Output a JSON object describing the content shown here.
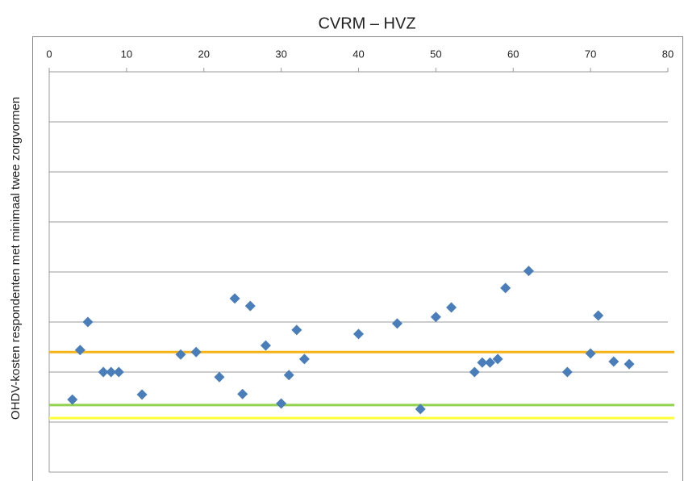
{
  "chart_data": {
    "type": "scatter",
    "title": "CVRM – HVZ",
    "y_label": "OHDV-kosten respondenten met minimaal twee zorgvormen",
    "series": [
      {
        "color": "#4a7ebb",
        "x": [
          3,
          4,
          5,
          7,
          8,
          9,
          12,
          17,
          19,
          22,
          24,
          25,
          26,
          28,
          30,
          31,
          32,
          33,
          40,
          45,
          48,
          50,
          52,
          55,
          56,
          57,
          58,
          59,
          62,
          67,
          70,
          71,
          73,
          75
        ],
        "values": [
          1.45,
          2.44,
          3.0,
          2.0,
          2.0,
          2.0,
          1.55,
          2.35,
          2.4,
          1.9,
          3.47,
          1.56,
          3.32,
          2.53,
          1.37,
          1.94,
          2.84,
          2.26,
          2.76,
          2.97,
          1.26,
          3.1,
          3.29,
          2.0,
          2.19,
          2.19,
          2.26,
          3.68,
          4.02,
          2.0,
          2.37,
          3.13,
          2.21,
          2.16
        ]
      }
    ],
    "reference_lines": [
      {
        "value": 2.4,
        "color": "#f5b31a"
      },
      {
        "value": 1.34,
        "color": "#92d050"
      },
      {
        "value": 1.08,
        "color": "#ffff33"
      }
    ],
    "xlim": [
      0,
      80
    ],
    "xticks": [
      0,
      10,
      20,
      30,
      40,
      50,
      60,
      70,
      80
    ],
    "ylim": [
      0,
      8
    ],
    "yticks": [
      0,
      1,
      2,
      3,
      4,
      5,
      6,
      7,
      8
    ],
    "grid": true
  }
}
